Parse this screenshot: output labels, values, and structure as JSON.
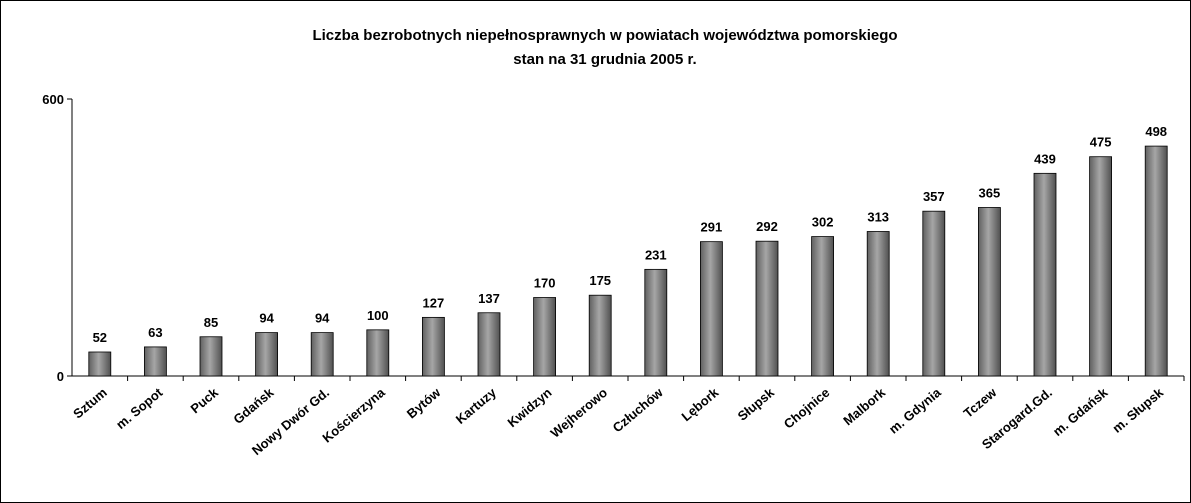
{
  "chart_data": {
    "type": "bar",
    "title": "Liczba bezrobotnych niepełnosprawnych w powiatach województwa pomorskiego",
    "subtitle": "stan na 31 grudnia 2005 r.",
    "categories": [
      "Sztum",
      "m. Sopot",
      "Puck",
      "Gdańsk",
      "Nowy Dwór Gd.",
      "Kościerzyna",
      "Bytów",
      "Kartuzy",
      "Kwidzyn",
      "Wejherowo",
      "Człuchów",
      "Lębork",
      "Słupsk",
      "Chojnice",
      "Malbork",
      "m. Gdynia",
      "Tczew",
      "Starogard.Gd.",
      "m. Gdańsk",
      "m. Słupsk"
    ],
    "values": [
      52,
      63,
      85,
      94,
      94,
      100,
      127,
      137,
      170,
      175,
      231,
      291,
      292,
      302,
      313,
      357,
      365,
      439,
      475,
      498
    ],
    "color": "#a6a6a6",
    "ylim": [
      0,
      600
    ],
    "yticks": [
      0,
      600
    ]
  }
}
